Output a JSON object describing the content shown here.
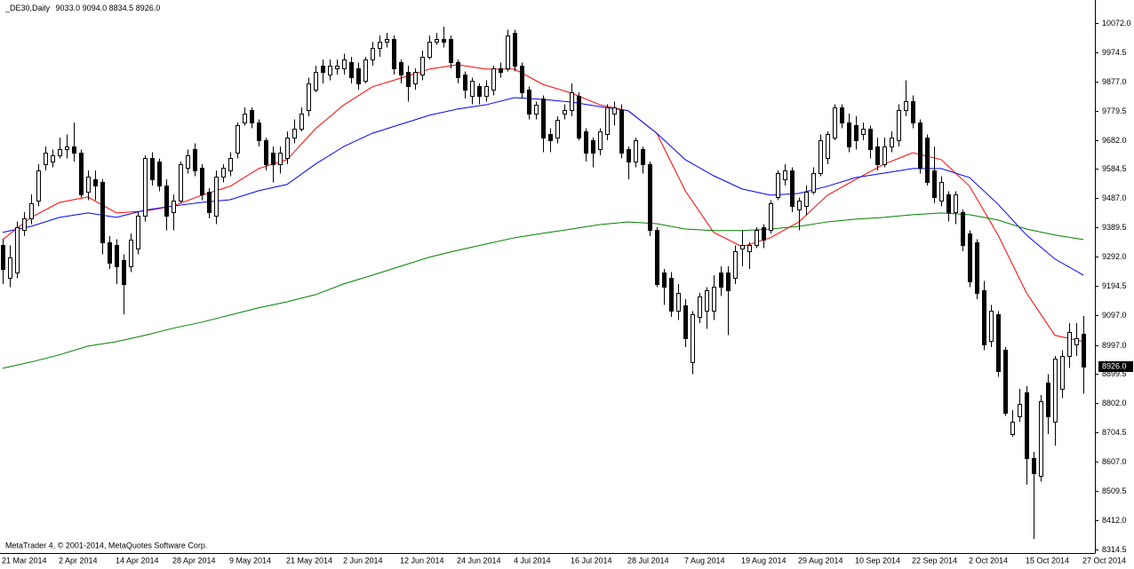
{
  "chart_data": {
    "type": "candlestick",
    "title": "_DE30,Daily",
    "ohlc_labels": [
      "9033.0",
      "9094.0",
      "8834.5",
      "8926.0"
    ],
    "last_price_label": "8926.0",
    "watermark": "MetaTrader 4, © 2001-2014, MetaQuotes Software Corp.",
    "categories": [
      "21 Mar 2014",
      null,
      null,
      null,
      null,
      null,
      null,
      null,
      "2 Apr 2014",
      null,
      null,
      null,
      null,
      null,
      null,
      null,
      "14 Apr 2014",
      null,
      null,
      null,
      null,
      null,
      null,
      null,
      "28 Apr 2014",
      null,
      null,
      null,
      null,
      null,
      null,
      null,
      "9 May 2014",
      null,
      null,
      null,
      null,
      null,
      null,
      null,
      "21 May 2014",
      null,
      null,
      null,
      null,
      null,
      null,
      null,
      "2 Jun 2014",
      null,
      null,
      null,
      null,
      null,
      null,
      null,
      "12 Jun 2014",
      null,
      null,
      null,
      null,
      null,
      null,
      null,
      "24 Jun 2014",
      null,
      null,
      null,
      null,
      null,
      null,
      null,
      "4 Jul 2014",
      null,
      null,
      null,
      null,
      null,
      null,
      null,
      "16 Jul 2014",
      null,
      null,
      null,
      null,
      null,
      null,
      null,
      "28 Jul 2014",
      null,
      null,
      null,
      null,
      null,
      null,
      null,
      "7 Aug 2014",
      null,
      null,
      null,
      null,
      null,
      null,
      null,
      "19 Aug 2014",
      null,
      null,
      null,
      null,
      null,
      null,
      null,
      "29 Aug 2014",
      null,
      null,
      null,
      null,
      null,
      null,
      null,
      "10 Sep 2014",
      null,
      null,
      null,
      null,
      null,
      null,
      null,
      "22 Sep 2014",
      null,
      null,
      null,
      null,
      null,
      null,
      null,
      "2 Oct 2014",
      null,
      null,
      null,
      null,
      null,
      null,
      null,
      "15 Oct 2014",
      null,
      null,
      null,
      null,
      null,
      null,
      null,
      "27 Oct 2014"
    ],
    "open": [
      9330,
      9220,
      9240,
      9380,
      9420,
      9480,
      9600,
      9610,
      9630,
      9650,
      9660,
      9640,
      9510,
      9550,
      9540,
      9340,
      9330,
      9280,
      9260,
      9320,
      9430,
      9620,
      9610,
      9530,
      9440,
      9480,
      9590,
      9650,
      9590,
      9510,
      9430,
      9560,
      9580,
      9640,
      9740,
      9780,
      9740,
      9680,
      9640,
      9600,
      9620,
      9690,
      9720,
      9780,
      9850,
      9930,
      9900,
      9920,
      9920,
      9940,
      9920,
      9880,
      9950,
      9990,
      10010,
      10020,
      9940,
      9910,
      9870,
      9900,
      9960,
      10010,
      10020,
      10020,
      9940,
      9900,
      9830,
      9860,
      9830,
      9850,
      9920,
      9920,
      10040,
      9930,
      9850,
      9770,
      9820,
      9700,
      9690,
      9770,
      9780,
      9830,
      9710,
      9680,
      9650,
      9700,
      9770,
      9780,
      9650,
      9610,
      9650,
      9600,
      9380,
      9240,
      9220,
      9110,
      9130,
      8940,
      9090,
      9110,
      9110,
      9240,
      9240,
      9220,
      9320,
      9310,
      9330,
      9390,
      9380,
      9490,
      9550,
      9580,
      9450,
      9460,
      9510,
      9570,
      9620,
      9690,
      9790,
      9740,
      9730,
      9700,
      9720,
      9660,
      9600,
      9660,
      9680,
      9780,
      9810,
      9740,
      9690,
      9580,
      9480,
      9500,
      9440,
      9440,
      9370,
      9340,
      9180,
      9010,
      9100,
      8980,
      8700,
      8760,
      8840,
      8620,
      8560,
      8870,
      8740,
      8850,
      8960,
      9000,
      9033
    ],
    "high": [
      9350,
      9330,
      9410,
      9440,
      9500,
      9600,
      9660,
      9650,
      9690,
      9700,
      9740,
      9650,
      9580,
      9580,
      9550,
      9360,
      9350,
      9300,
      9370,
      9440,
      9630,
      9640,
      9620,
      9550,
      9500,
      9610,
      9650,
      9670,
      9600,
      9520,
      9580,
      9600,
      9640,
      9740,
      9790,
      9790,
      9750,
      9690,
      9660,
      9660,
      9710,
      9750,
      9790,
      9890,
      9930,
      9950,
      9950,
      9950,
      9970,
      9960,
      9940,
      9960,
      10010,
      10030,
      10040,
      10030,
      9950,
      9930,
      9920,
      9980,
      10030,
      10040,
      10060,
      10030,
      9950,
      9910,
      9890,
      9870,
      9880,
      9930,
      9940,
      10050,
      10050,
      9940,
      9860,
      9810,
      9830,
      9720,
      9760,
      9800,
      9870,
      9840,
      9720,
      9690,
      9720,
      9800,
      9810,
      9800,
      9660,
      9690,
      9660,
      9610,
      9390,
      9250,
      9240,
      9200,
      9150,
      9110,
      9170,
      9190,
      9230,
      9260,
      9260,
      9330,
      9380,
      9340,
      9390,
      9400,
      9480,
      9580,
      9600,
      9590,
      9490,
      9530,
      9590,
      9700,
      9710,
      9800,
      9800,
      9770,
      9760,
      9740,
      9730,
      9690,
      9690,
      9710,
      9800,
      9880,
      9830,
      9750,
      9700,
      9660,
      9560,
      9510,
      9510,
      9450,
      9380,
      9350,
      9210,
      9130,
      9110,
      8990,
      8780,
      8850,
      8860,
      8640,
      8830,
      8900,
      8960,
      8980,
      9070,
      9070,
      9094
    ],
    "low": [
      9200,
      9190,
      9220,
      9360,
      9400,
      9460,
      9580,
      9590,
      9620,
      9620,
      9610,
      9490,
      9480,
      9480,
      9300,
      9250,
      9200,
      9100,
      9240,
      9300,
      9410,
      9530,
      9510,
      9380,
      9380,
      9470,
      9570,
      9560,
      9480,
      9420,
      9400,
      9540,
      9560,
      9620,
      9730,
      9720,
      9660,
      9580,
      9540,
      9570,
      9600,
      9670,
      9710,
      9760,
      9840,
      9870,
      9880,
      9900,
      9900,
      9870,
      9850,
      9870,
      9930,
      9960,
      9990,
      9900,
      9870,
      9810,
      9850,
      9880,
      9950,
      10000,
      9990,
      9920,
      9870,
      9820,
      9800,
      9800,
      9810,
      9830,
      9890,
      9910,
      9910,
      9820,
      9750,
      9750,
      9640,
      9640,
      9670,
      9750,
      9760,
      9680,
      9610,
      9590,
      9630,
      9680,
      9730,
      9620,
      9550,
      9590,
      9570,
      9360,
      9190,
      9130,
      9090,
      9080,
      8990,
      8900,
      9070,
      9050,
      9080,
      9160,
      9030,
      9200,
      9260,
      9250,
      9320,
      9320,
      9370,
      9480,
      9530,
      9440,
      9380,
      9430,
      9500,
      9560,
      9600,
      9680,
      9720,
      9640,
      9650,
      9680,
      9620,
      9580,
      9590,
      9640,
      9660,
      9760,
      9720,
      9570,
      9530,
      9470,
      9460,
      9410,
      9400,
      9310,
      9190,
      9150,
      8980,
      8990,
      8890,
      8760,
      8690,
      8740,
      8530,
      8350,
      8540,
      8700,
      8660,
      8820,
      8920,
      8960,
      8834.5
    ],
    "close": [
      9250,
      9290,
      9390,
      9420,
      9470,
      9580,
      9640,
      9630,
      9650,
      9660,
      9640,
      9500,
      9560,
      9530,
      9340,
      9270,
      9260,
      9200,
      9350,
      9430,
      9620,
      9550,
      9530,
      9430,
      9480,
      9600,
      9630,
      9580,
      9500,
      9440,
      9560,
      9590,
      9620,
      9730,
      9770,
      9740,
      9680,
      9600,
      9600,
      9640,
      9690,
      9720,
      9770,
      9870,
      9910,
      9910,
      9930,
      9930,
      9950,
      9890,
      9870,
      9950,
      9990,
      10010,
      10020,
      9920,
      9900,
      9860,
      9910,
      9960,
      10010,
      10020,
      10010,
      9940,
      9890,
      9850,
      9880,
      9830,
      9860,
      9920,
      9910,
      10030,
      9930,
      9840,
      9770,
      9800,
      9690,
      9680,
      9750,
      9780,
      9840,
      9690,
      9640,
      9640,
      9710,
      9790,
      9790,
      9640,
      9610,
      9680,
      9600,
      9380,
      9200,
      9190,
      9110,
      9170,
      9020,
      9100,
      9160,
      9180,
      9190,
      9190,
      9180,
      9310,
      9330,
      9330,
      9380,
      9350,
      9470,
      9570,
      9580,
      9460,
      9480,
      9510,
      9570,
      9680,
      9700,
      9790,
      9740,
      9660,
      9680,
      9720,
      9650,
      9600,
      9660,
      9690,
      9780,
      9810,
      9740,
      9590,
      9540,
      9490,
      9540,
      9440,
      9500,
      9330,
      9210,
      9170,
      9000,
      9110,
      8910,
      8770,
      8740,
      8800,
      8620,
      8570,
      8810,
      8760,
      8950,
      8960,
      9040,
      9020,
      8926
    ],
    "bull_color": "#ffffff",
    "bear_color": "#000000",
    "ma_x": [
      0,
      4,
      8,
      12,
      16,
      20,
      24,
      28,
      32,
      36,
      40,
      44,
      48,
      52,
      56,
      60,
      64,
      68,
      72,
      76,
      80,
      84,
      88,
      92,
      96,
      100,
      104,
      108,
      112,
      116,
      120,
      124,
      128,
      132,
      136,
      140,
      144,
      148,
      152
    ],
    "moving_averages": [
      {
        "color": "#ff0000",
        "values": [
          9349,
          9423,
          9473,
          9491,
          9438,
          9444,
          9461,
          9497,
          9527,
          9586,
          9616,
          9719,
          9799,
          9859,
          9888,
          9918,
          9933,
          9918,
          9918,
          9867,
          9838,
          9799,
          9779,
          9704,
          9512,
          9373,
          9325,
          9355,
          9408,
          9497,
          9550,
          9601,
          9639,
          9616,
          9527,
          9364,
          9171,
          9029,
          9008
        ]
      },
      {
        "color": "#0000ff",
        "values": [
          9373,
          9393,
          9423,
          9438,
          9423,
          9447,
          9461,
          9473,
          9482,
          9512,
          9533,
          9601,
          9660,
          9704,
          9734,
          9764,
          9785,
          9799,
          9823,
          9817,
          9808,
          9793,
          9779,
          9704,
          9616,
          9562,
          9518,
          9497,
          9503,
          9527,
          9556,
          9571,
          9586,
          9586,
          9556,
          9467,
          9364,
          9284,
          9230
        ]
      },
      {
        "color": "#008000",
        "values": [
          8919,
          8940,
          8964,
          8993,
          9008,
          9029,
          9053,
          9073,
          9097,
          9121,
          9141,
          9165,
          9201,
          9230,
          9260,
          9290,
          9313,
          9334,
          9355,
          9370,
          9384,
          9399,
          9408,
          9402,
          9384,
          9379,
          9379,
          9384,
          9393,
          9408,
          9417,
          9423,
          9432,
          9438,
          9432,
          9414,
          9384,
          9364,
          9349
        ]
      }
    ],
    "ylim": [
      8302,
      10149
    ],
    "yticks": [
      {
        "value": 10072,
        "label": "10072.0"
      },
      {
        "value": 9974.5,
        "label": "9974.5"
      },
      {
        "value": 9877,
        "label": "9877.0"
      },
      {
        "value": 9779.5,
        "label": "9779.5"
      },
      {
        "value": 9682,
        "label": "9682.0"
      },
      {
        "value": 9584.5,
        "label": "9584.5"
      },
      {
        "value": 9487,
        "label": "9487.0"
      },
      {
        "value": 9389.5,
        "label": "9389.5"
      },
      {
        "value": 9292,
        "label": "9292.0"
      },
      {
        "value": 9194.5,
        "label": "9194.5"
      },
      {
        "value": 9097,
        "label": "9097.0"
      },
      {
        "value": 8997,
        "label": "8997.0"
      },
      {
        "value": 8899.5,
        "label": "8899.5"
      },
      {
        "value": 8802,
        "label": "8802.0"
      },
      {
        "value": 8704.5,
        "label": "8704.5"
      },
      {
        "value": 8607,
        "label": "8607.0"
      },
      {
        "value": 8509.5,
        "label": "8509.5"
      },
      {
        "value": 8412,
        "label": "8412.0"
      },
      {
        "value": 8314.5,
        "label": "8314.5"
      }
    ]
  }
}
